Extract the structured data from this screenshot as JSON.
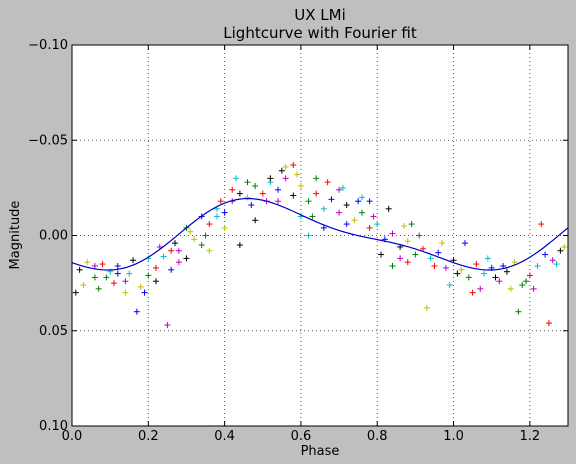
{
  "chart_data": {
    "type": "scatter",
    "title": "UX LMi",
    "subtitle": "Lightcurve with Fourier fit",
    "xlabel": "Phase",
    "ylabel": "Magnitude",
    "xlim": [
      0.0,
      1.3
    ],
    "ylim": [
      0.1,
      -0.1
    ],
    "y_inverted": true,
    "grid": true,
    "x_ticks": [
      0.0,
      0.2,
      0.4,
      0.6,
      0.8,
      1.0,
      1.2
    ],
    "x_tick_labels": [
      "0.0",
      "0.2",
      "0.4",
      "0.6",
      "0.8",
      "1.0",
      "1.2"
    ],
    "y_ticks": [
      -0.1,
      -0.05,
      0.0,
      0.05,
      0.1
    ],
    "y_tick_labels": [
      "−0.10",
      "−0.05",
      "0.00",
      "0.05",
      "0.10"
    ],
    "point_colors": [
      "#000000",
      "#bfbf00",
      "#008000",
      "#ff0000",
      "#00bfbf",
      "#0000ff",
      "#bf00bf"
    ],
    "fit": {
      "color": "#0000cc",
      "mean": 0.0,
      "a1": 0.0165,
      "p1": 0.52,
      "a2": 0.005,
      "p2": 0.41
    },
    "scatter_points": [
      [
        0.02,
        0.018
      ],
      [
        0.04,
        0.014
      ],
      [
        0.06,
        0.022
      ],
      [
        0.08,
        0.015
      ],
      [
        0.1,
        0.019
      ],
      [
        0.12,
        0.016
      ],
      [
        0.14,
        0.024
      ],
      [
        0.16,
        0.013
      ],
      [
        0.18,
        0.027
      ],
      [
        0.2,
        0.021
      ],
      [
        0.22,
        0.017
      ],
      [
        0.24,
        0.011
      ],
      [
        0.26,
        0.018
      ],
      [
        0.28,
        0.008
      ],
      [
        0.3,
        0.012
      ],
      [
        0.32,
        0.002
      ],
      [
        0.34,
        0.005
      ],
      [
        0.36,
        -0.006
      ],
      [
        0.38,
        -0.01
      ],
      [
        0.4,
        -0.012
      ],
      [
        0.42,
        -0.018
      ],
      [
        0.44,
        -0.022
      ],
      [
        0.46,
        -0.02
      ],
      [
        0.48,
        -0.026
      ],
      [
        0.5,
        -0.022
      ],
      [
        0.52,
        -0.028
      ],
      [
        0.54,
        -0.024
      ],
      [
        0.56,
        -0.03
      ],
      [
        0.58,
        -0.021
      ],
      [
        0.6,
        -0.026
      ],
      [
        0.62,
        -0.018
      ],
      [
        0.64,
        -0.022
      ],
      [
        0.66,
        -0.014
      ],
      [
        0.68,
        -0.019
      ],
      [
        0.7,
        -0.012
      ],
      [
        0.72,
        -0.016
      ],
      [
        0.74,
        -0.008
      ],
      [
        0.76,
        -0.012
      ],
      [
        0.78,
        -0.004
      ],
      [
        0.8,
        -0.006
      ],
      [
        0.82,
        0.002
      ],
      [
        0.84,
        -0.001
      ],
      [
        0.86,
        0.006
      ],
      [
        0.88,
        0.003
      ],
      [
        0.9,
        0.01
      ],
      [
        0.92,
        0.007
      ],
      [
        0.94,
        0.012
      ],
      [
        0.96,
        0.009
      ],
      [
        0.98,
        0.017
      ],
      [
        1.0,
        0.013
      ],
      [
        1.02,
        0.018
      ],
      [
        1.04,
        0.022
      ],
      [
        1.06,
        0.015
      ],
      [
        1.08,
        0.02
      ],
      [
        1.1,
        0.017
      ],
      [
        1.12,
        0.024
      ],
      [
        1.14,
        0.019
      ],
      [
        1.16,
        0.014
      ],
      [
        1.18,
        0.026
      ],
      [
        1.2,
        0.021
      ],
      [
        1.22,
        0.016
      ],
      [
        1.24,
        0.01
      ],
      [
        1.26,
        0.013
      ],
      [
        1.28,
        0.008
      ],
      [
        0.03,
        0.026
      ],
      [
        0.07,
        0.028
      ],
      [
        0.11,
        0.025
      ],
      [
        0.15,
        0.02
      ],
      [
        0.19,
        0.03
      ],
      [
        0.23,
        0.006
      ],
      [
        0.27,
        0.004
      ],
      [
        0.31,
        -0.002
      ],
      [
        0.35,
        0.0
      ],
      [
        0.39,
        -0.018
      ],
      [
        0.43,
        -0.03
      ],
      [
        0.47,
        -0.016
      ],
      [
        0.51,
        -0.018
      ],
      [
        0.55,
        -0.034
      ],
      [
        0.59,
        -0.032
      ],
      [
        0.63,
        -0.01
      ],
      [
        0.67,
        -0.028
      ],
      [
        0.71,
        -0.025
      ],
      [
        0.75,
        -0.018
      ],
      [
        0.79,
        -0.01
      ],
      [
        0.83,
        -0.014
      ],
      [
        0.87,
        -0.005
      ],
      [
        0.91,
        0.0
      ],
      [
        0.95,
        0.016
      ],
      [
        0.99,
        0.026
      ],
      [
        1.03,
        0.004
      ],
      [
        1.07,
        0.028
      ],
      [
        1.11,
        0.022
      ],
      [
        1.15,
        0.028
      ],
      [
        1.19,
        0.024
      ],
      [
        1.23,
        -0.006
      ],
      [
        1.27,
        0.015
      ],
      [
        0.17,
        0.04
      ],
      [
        0.25,
        0.047
      ],
      [
        0.81,
        0.01
      ],
      [
        0.93,
        0.038
      ],
      [
        1.17,
        0.04
      ],
      [
        1.25,
        0.046
      ],
      [
        0.62,
        0.0
      ],
      [
        0.72,
        -0.006
      ],
      [
        0.86,
        0.012
      ],
      [
        0.44,
        0.005
      ],
      [
        0.36,
        0.008
      ],
      [
        0.64,
        -0.03
      ],
      [
        0.58,
        -0.037
      ],
      [
        0.6,
        -0.01
      ],
      [
        0.66,
        -0.004
      ],
      [
        0.54,
        -0.018
      ],
      [
        0.48,
        -0.008
      ],
      [
        0.4,
        -0.004
      ],
      [
        0.3,
        -0.004
      ],
      [
        0.26,
        0.008
      ],
      [
        0.2,
        0.012
      ],
      [
        0.12,
        0.02
      ],
      [
        0.06,
        0.016
      ],
      [
        0.01,
        0.03
      ],
      [
        1.29,
        0.006
      ],
      [
        0.84,
        0.016
      ],
      [
        0.88,
        0.014
      ],
      [
        0.76,
        -0.02
      ],
      [
        0.78,
        -0.018
      ],
      [
        0.7,
        -0.024
      ],
      [
        0.52,
        -0.03
      ],
      [
        0.56,
        -0.036
      ],
      [
        0.46,
        -0.028
      ],
      [
        0.42,
        -0.024
      ],
      [
        0.38,
        -0.014
      ],
      [
        0.34,
        -0.01
      ],
      [
        0.28,
        0.014
      ],
      [
        0.22,
        0.024
      ],
      [
        0.14,
        0.03
      ],
      [
        0.09,
        0.022
      ],
      [
        1.05,
        0.03
      ],
      [
        1.09,
        0.012
      ],
      [
        1.13,
        0.016
      ],
      [
        1.21,
        0.028
      ],
      [
        1.01,
        0.02
      ],
      [
        0.97,
        0.004
      ],
      [
        0.89,
        -0.006
      ]
    ]
  }
}
